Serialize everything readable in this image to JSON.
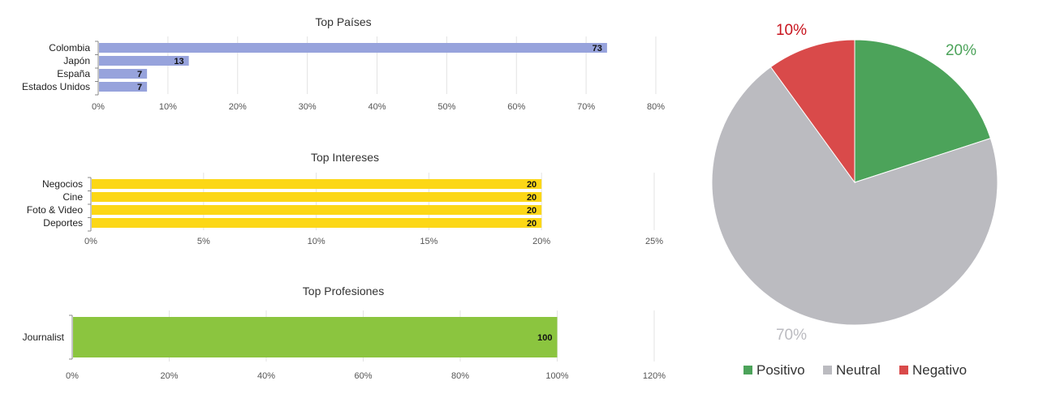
{
  "chart_data": [
    {
      "type": "bar",
      "orientation": "horizontal",
      "title": "Top Países",
      "categories": [
        "Colombia",
        "Japón",
        "España",
        "Estados Unidos"
      ],
      "values": [
        73,
        13,
        7,
        7
      ],
      "data_labels": [
        "73",
        "13",
        "7",
        "7"
      ],
      "xlim": [
        0,
        80
      ],
      "ticks": [
        "0%",
        "10%",
        "20%",
        "30%",
        "40%",
        "50%",
        "60%",
        "70%",
        "80%"
      ],
      "color": "#97a3dc",
      "grid": true
    },
    {
      "type": "bar",
      "orientation": "horizontal",
      "title": "Top Intereses",
      "categories": [
        "Negocios",
        "Cine",
        "Foto & Video",
        "Deportes"
      ],
      "values": [
        20,
        20,
        20,
        20
      ],
      "data_labels": [
        "20",
        "20",
        "20",
        "20"
      ],
      "xlim": [
        0,
        25
      ],
      "ticks": [
        "0%",
        "5%",
        "10%",
        "15%",
        "20%",
        "25%"
      ],
      "color": "#fcd716",
      "grid": true
    },
    {
      "type": "bar",
      "orientation": "horizontal",
      "title": "Top Profesiones",
      "categories": [
        "Journalist"
      ],
      "values": [
        100
      ],
      "data_labels": [
        "100"
      ],
      "xlim": [
        0,
        120
      ],
      "ticks": [
        "0%",
        "20%",
        "40%",
        "60%",
        "80%",
        "100%",
        "120%"
      ],
      "color": "#8bc53f",
      "grid": true
    },
    {
      "type": "pie",
      "slices": [
        {
          "label": "Positivo",
          "value": 20,
          "text": "20%",
          "color": "#4ca35a"
        },
        {
          "label": "Neutral",
          "value": 70,
          "text": "70%",
          "color": "#bbbbc0"
        },
        {
          "label": "Negativo",
          "value": 10,
          "text": "10%",
          "color": "#d94a4a"
        }
      ],
      "legend": "bottom",
      "label_colors": {
        "Positivo": "#4ca35a",
        "Neutral": "#bbbbc0",
        "Negativo": "#c8141e"
      }
    }
  ]
}
